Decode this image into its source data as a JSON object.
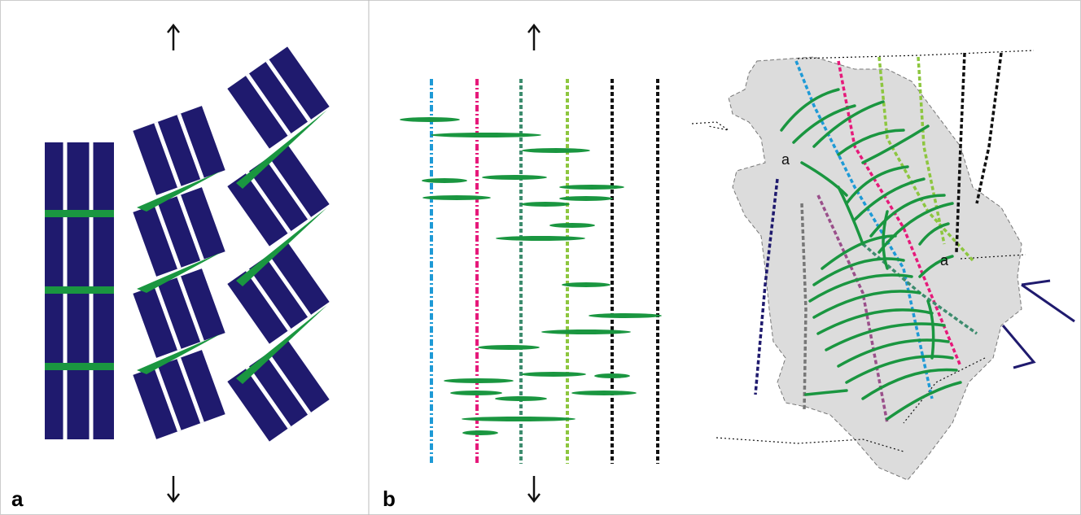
{
  "panels": [
    {
      "label": "a"
    },
    {
      "label": "b"
    }
  ],
  "map_labels": [
    "a",
    "a"
  ]
}
